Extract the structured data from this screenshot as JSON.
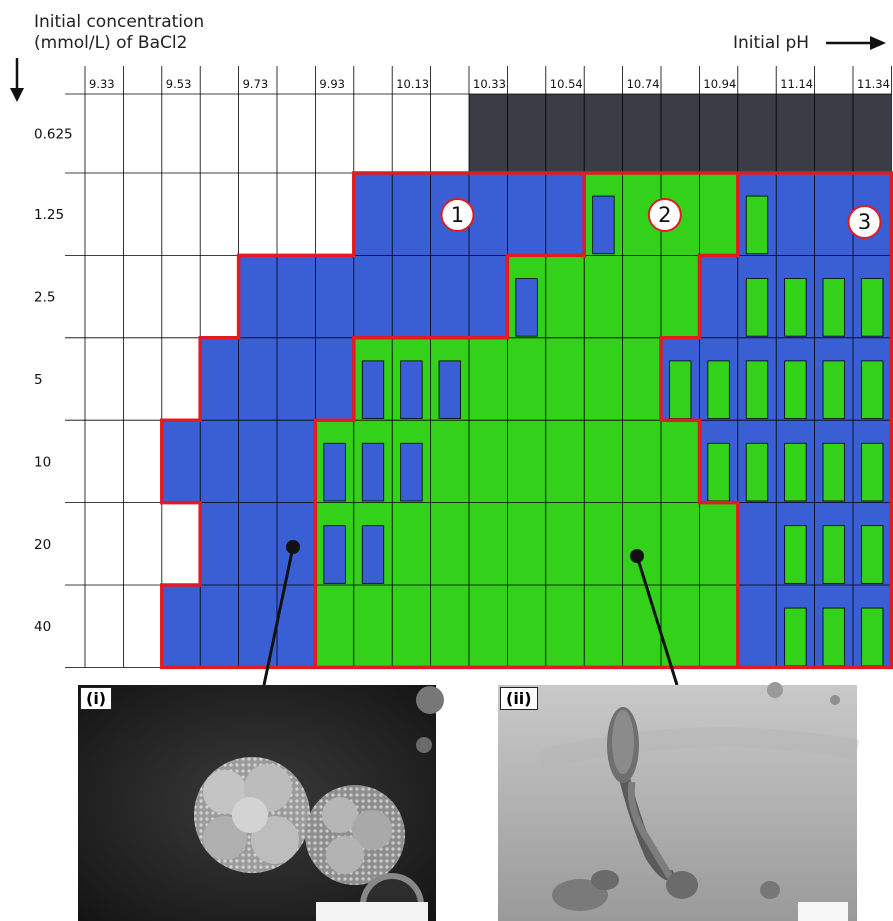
{
  "title": {
    "y_axis_line1": "Initial concentration",
    "y_axis_line2": "(mmol/L) of BaCl2",
    "x_axis": "Initial pH"
  },
  "ph_labels": [
    "9.33",
    "9.53",
    "9.73",
    "9.93",
    "10.13",
    "10.33",
    "10.54",
    "10.74",
    "10.94",
    "11.14",
    "11.34"
  ],
  "conc_labels": [
    "0.625",
    "1.25",
    "2.5",
    "5",
    "10",
    "20",
    "40"
  ],
  "region_labels": [
    "1",
    "2",
    "3"
  ],
  "panels": [
    {
      "label": "(i)",
      "description": "SEM: clustered spherical aggregates"
    },
    {
      "label": "(ii)",
      "description": "SEM: twisted helical filament with crystalline head"
    }
  ],
  "colors": {
    "blue": "#3a5fd4",
    "green": "#33d11a",
    "dark": "#3a3d45",
    "border": "#e01b24",
    "grid": "#000000"
  },
  "grid_legend": {
    "dark": "top row, cols 10–21",
    "regions": "1 = blue, 2 = green, 3 = blue with green bars"
  }
}
